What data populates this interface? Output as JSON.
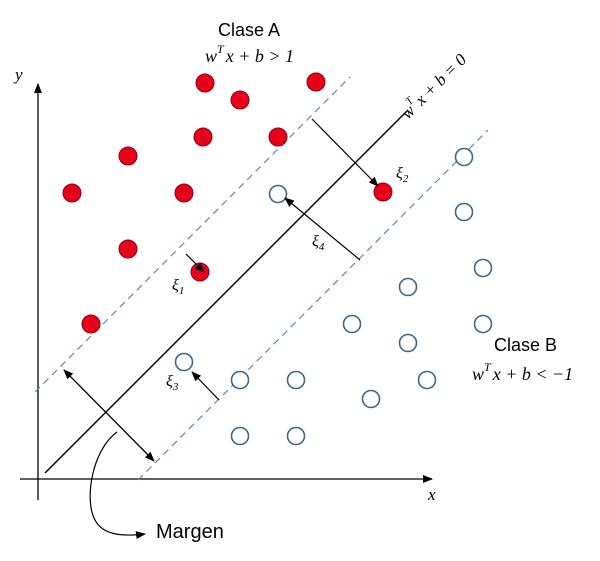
{
  "class_a": {
    "title": "Clase A",
    "inequality": {
      "w": "w",
      "T": "T",
      "rest": "x + b > 1"
    }
  },
  "class_b": {
    "title": "Clase B",
    "inequality": {
      "w": "w",
      "T": "T",
      "rest": "x + b < −1"
    }
  },
  "hyperplane": {
    "w": "w",
    "T": "T",
    "rest": "x + b = 0"
  },
  "axes": {
    "x": "x",
    "y": "y"
  },
  "slacks": [
    {
      "sym": "ξ",
      "sub": "1"
    },
    {
      "sym": "ξ",
      "sub": "2"
    },
    {
      "sym": "ξ",
      "sub": "3"
    },
    {
      "sym": "ξ",
      "sub": "4"
    }
  ],
  "margin_label": "Margen",
  "colors": {
    "class_a_fill": "#e8001a",
    "class_b_stroke": "#3d6787",
    "margin_line": "#5b87b7",
    "line": "#000000"
  },
  "icons": {
    "class_a_point": "filled-red-circle",
    "class_b_point": "hollow-blue-circle"
  }
}
